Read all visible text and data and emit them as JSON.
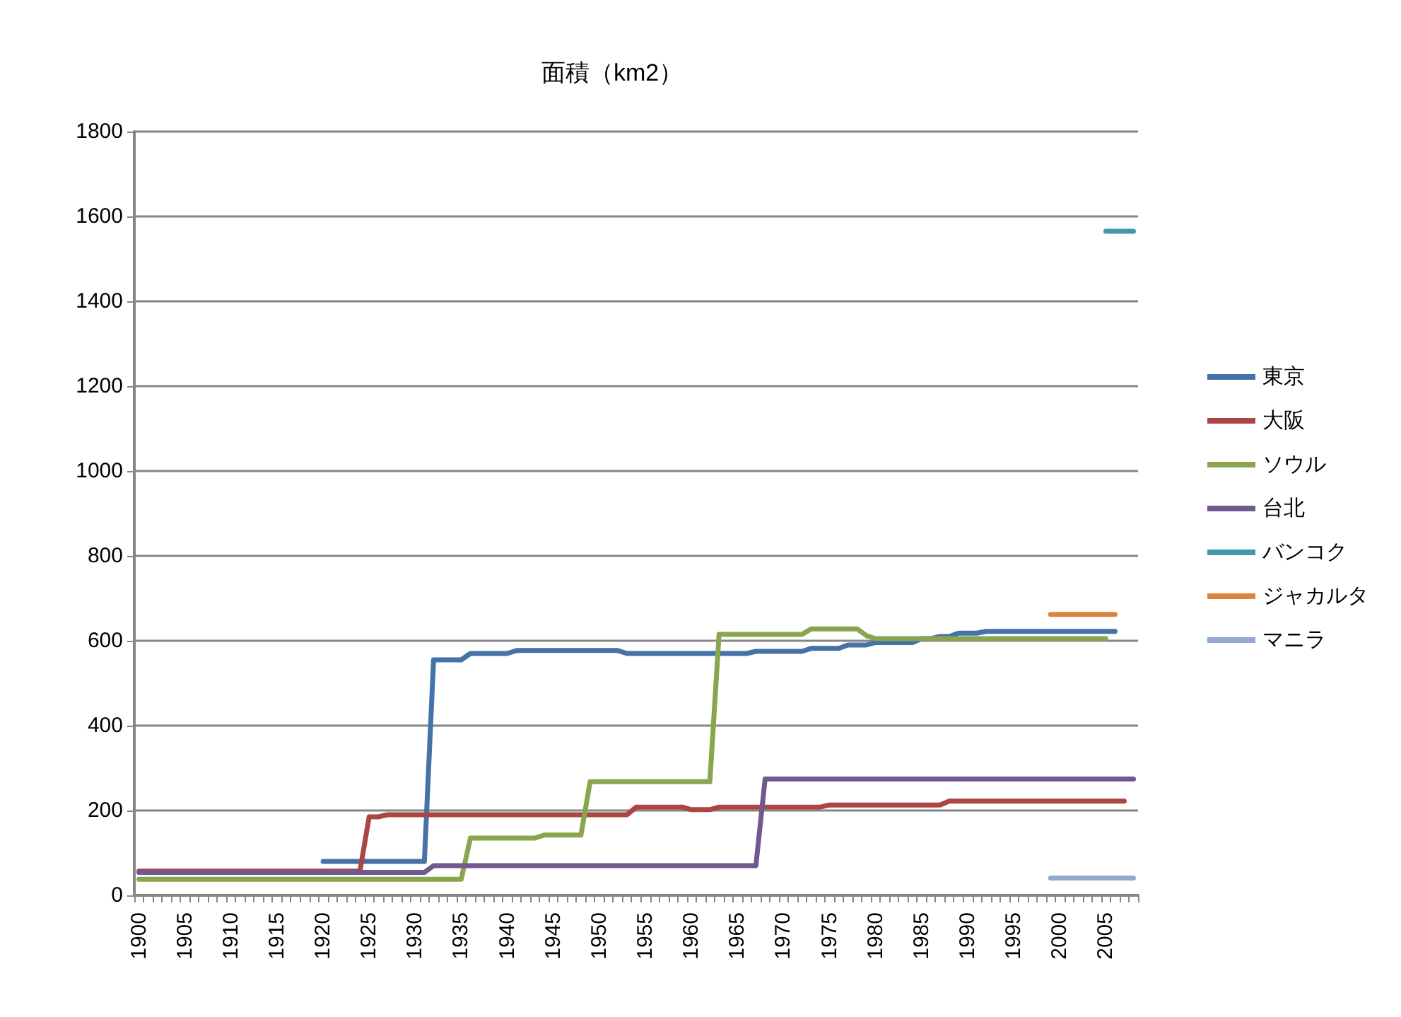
{
  "chart_data": {
    "type": "line",
    "title": "面積（km2）",
    "categories": [
      "1900",
      null,
      null,
      null,
      null,
      "1905",
      null,
      null,
      null,
      null,
      "1910",
      null,
      null,
      null,
      null,
      "1915",
      null,
      null,
      null,
      null,
      "1920",
      null,
      null,
      null,
      null,
      "1925",
      null,
      null,
      null,
      null,
      "1930",
      null,
      null,
      null,
      null,
      "1935",
      null,
      null,
      null,
      null,
      "1940",
      null,
      null,
      null,
      null,
      "1945",
      null,
      null,
      null,
      null,
      "1950",
      null,
      null,
      null,
      null,
      "1955",
      null,
      null,
      null,
      null,
      "1960",
      null,
      null,
      null,
      null,
      "1965",
      null,
      null,
      null,
      null,
      "1970",
      null,
      null,
      null,
      null,
      "1975",
      null,
      null,
      null,
      null,
      "1980",
      null,
      null,
      null,
      null,
      "1985",
      null,
      null,
      null,
      null,
      "1990",
      null,
      null,
      null,
      null,
      "1995",
      null,
      null,
      null,
      null,
      "2000",
      null,
      null,
      null,
      null,
      "2005",
      null,
      null,
      null
    ],
    "series": [
      {
        "name": "東京",
        "color": "#4572a7",
        "values": [
          null,
          null,
          null,
          null,
          null,
          null,
          null,
          null,
          null,
          null,
          null,
          null,
          null,
          null,
          null,
          null,
          null,
          null,
          null,
          null,
          80,
          80,
          80,
          80,
          80,
          80,
          80,
          80,
          80,
          80,
          80,
          80,
          555,
          555,
          555,
          555,
          570,
          570,
          570,
          570,
          570,
          577,
          577,
          577,
          577,
          577,
          577,
          577,
          577,
          577,
          577,
          577,
          577,
          570,
          570,
          570,
          570,
          570,
          570,
          570,
          570,
          570,
          570,
          570,
          570,
          570,
          570,
          575,
          575,
          575,
          575,
          575,
          575,
          582,
          582,
          582,
          582,
          590,
          590,
          590,
          596,
          596,
          596,
          596,
          596,
          605,
          605,
          610,
          610,
          618,
          618,
          618,
          622,
          622,
          622,
          622,
          622,
          622,
          622,
          622,
          622,
          622,
          622,
          622,
          622,
          622,
          622,
          null,
          null
        ]
      },
      {
        "name": "大阪",
        "color": "#aa4643",
        "values": [
          57,
          57,
          57,
          57,
          57,
          57,
          57,
          57,
          57,
          57,
          57,
          57,
          57,
          57,
          57,
          57,
          57,
          57,
          57,
          57,
          57,
          57,
          57,
          57,
          57,
          185,
          185,
          190,
          190,
          190,
          190,
          190,
          190,
          190,
          190,
          190,
          190,
          190,
          190,
          190,
          190,
          190,
          190,
          190,
          190,
          190,
          190,
          190,
          190,
          190,
          190,
          190,
          190,
          190,
          208,
          208,
          208,
          208,
          208,
          208,
          202,
          202,
          202,
          208,
          208,
          208,
          208,
          208,
          208,
          208,
          208,
          208,
          208,
          208,
          208,
          213,
          213,
          213,
          213,
          213,
          213,
          213,
          213,
          213,
          213,
          213,
          213,
          213,
          222,
          222,
          222,
          222,
          222,
          222,
          222,
          222,
          222,
          222,
          222,
          222,
          222,
          222,
          222,
          222,
          222,
          222,
          222,
          222,
          null
        ]
      },
      {
        "name": "ソウル",
        "color": "#89a54e",
        "values": [
          38,
          38,
          38,
          38,
          38,
          38,
          38,
          38,
          38,
          38,
          38,
          38,
          38,
          38,
          38,
          38,
          38,
          38,
          38,
          38,
          38,
          38,
          38,
          38,
          38,
          38,
          38,
          38,
          38,
          38,
          38,
          38,
          38,
          38,
          38,
          38,
          135,
          135,
          135,
          135,
          135,
          135,
          135,
          135,
          142,
          142,
          142,
          142,
          142,
          268,
          268,
          268,
          268,
          268,
          268,
          268,
          268,
          268,
          268,
          268,
          268,
          268,
          268,
          615,
          615,
          615,
          615,
          615,
          615,
          615,
          615,
          615,
          615,
          628,
          628,
          628,
          628,
          628,
          628,
          612,
          605,
          605,
          605,
          605,
          605,
          605,
          605,
          605,
          605,
          605,
          605,
          605,
          605,
          605,
          605,
          605,
          605,
          605,
          605,
          605,
          605,
          605,
          605,
          605,
          605,
          605,
          null,
          null,
          null
        ]
      },
      {
        "name": "台北",
        "color": "#71588f",
        "values": [
          54,
          54,
          54,
          54,
          54,
          54,
          54,
          54,
          54,
          54,
          54,
          54,
          54,
          54,
          54,
          54,
          54,
          54,
          54,
          54,
          54,
          54,
          54,
          54,
          54,
          54,
          54,
          54,
          54,
          54,
          54,
          54,
          70,
          70,
          70,
          70,
          70,
          70,
          70,
          70,
          70,
          70,
          70,
          70,
          70,
          70,
          70,
          70,
          70,
          70,
          70,
          70,
          70,
          70,
          70,
          70,
          70,
          70,
          70,
          70,
          70,
          70,
          70,
          70,
          70,
          70,
          70,
          70,
          274,
          274,
          274,
          274,
          274,
          274,
          274,
          274,
          274,
          274,
          274,
          274,
          274,
          274,
          274,
          274,
          274,
          274,
          274,
          274,
          274,
          274,
          274,
          274,
          274,
          274,
          274,
          274,
          274,
          274,
          274,
          274,
          274,
          274,
          274,
          274,
          274,
          274,
          274,
          274,
          274
        ]
      },
      {
        "name": "バンコク",
        "color": "#4198af",
        "values": [
          null,
          null,
          null,
          null,
          null,
          null,
          null,
          null,
          null,
          null,
          null,
          null,
          null,
          null,
          null,
          null,
          null,
          null,
          null,
          null,
          null,
          null,
          null,
          null,
          null,
          null,
          null,
          null,
          null,
          null,
          null,
          null,
          null,
          null,
          null,
          null,
          null,
          null,
          null,
          null,
          null,
          null,
          null,
          null,
          null,
          null,
          null,
          null,
          null,
          null,
          null,
          null,
          null,
          null,
          null,
          null,
          null,
          null,
          null,
          null,
          null,
          null,
          null,
          null,
          null,
          null,
          null,
          null,
          null,
          null,
          null,
          null,
          null,
          null,
          null,
          null,
          null,
          null,
          null,
          null,
          null,
          null,
          null,
          null,
          null,
          null,
          null,
          null,
          null,
          null,
          null,
          null,
          null,
          null,
          null,
          null,
          null,
          null,
          null,
          null,
          null,
          null,
          null,
          null,
          null,
          1565,
          1565,
          1565,
          1565
        ]
      },
      {
        "name": "ジャカルタ",
        "color": "#db843d",
        "values": [
          null,
          null,
          null,
          null,
          null,
          null,
          null,
          null,
          null,
          null,
          null,
          null,
          null,
          null,
          null,
          null,
          null,
          null,
          null,
          null,
          null,
          null,
          null,
          null,
          null,
          null,
          null,
          null,
          null,
          null,
          null,
          null,
          null,
          null,
          null,
          null,
          null,
          null,
          null,
          null,
          null,
          null,
          null,
          null,
          null,
          null,
          null,
          null,
          null,
          null,
          null,
          null,
          null,
          null,
          null,
          null,
          null,
          null,
          null,
          null,
          null,
          null,
          null,
          null,
          null,
          null,
          null,
          null,
          null,
          null,
          null,
          null,
          null,
          null,
          null,
          null,
          null,
          null,
          null,
          null,
          null,
          null,
          null,
          null,
          null,
          null,
          null,
          null,
          null,
          null,
          null,
          null,
          null,
          null,
          null,
          null,
          null,
          null,
          null,
          662,
          662,
          662,
          662,
          662,
          662,
          662,
          662,
          null,
          null
        ]
      },
      {
        "name": "マニラ",
        "color": "#93a9cf",
        "values": [
          null,
          null,
          null,
          null,
          null,
          null,
          null,
          null,
          null,
          null,
          null,
          null,
          null,
          null,
          null,
          null,
          null,
          null,
          null,
          null,
          null,
          null,
          null,
          null,
          null,
          null,
          null,
          null,
          null,
          null,
          null,
          null,
          null,
          null,
          null,
          null,
          null,
          null,
          null,
          null,
          null,
          null,
          null,
          null,
          null,
          null,
          null,
          null,
          null,
          null,
          null,
          null,
          null,
          null,
          null,
          null,
          null,
          null,
          null,
          null,
          null,
          null,
          null,
          null,
          null,
          null,
          null,
          null,
          null,
          null,
          null,
          null,
          null,
          null,
          null,
          null,
          null,
          null,
          null,
          null,
          null,
          null,
          null,
          null,
          null,
          null,
          null,
          null,
          null,
          null,
          null,
          null,
          null,
          null,
          null,
          null,
          null,
          null,
          null,
          41,
          41,
          41,
          41,
          41,
          41,
          41,
          41,
          41,
          41
        ]
      }
    ],
    "ylim": [
      0,
      1800
    ],
    "yticks": [
      0,
      200,
      400,
      600,
      800,
      1000,
      1200,
      1400,
      1600,
      1800
    ],
    "grid": "y",
    "legend": "right",
    "marker": "none",
    "line_style": "solid"
  }
}
